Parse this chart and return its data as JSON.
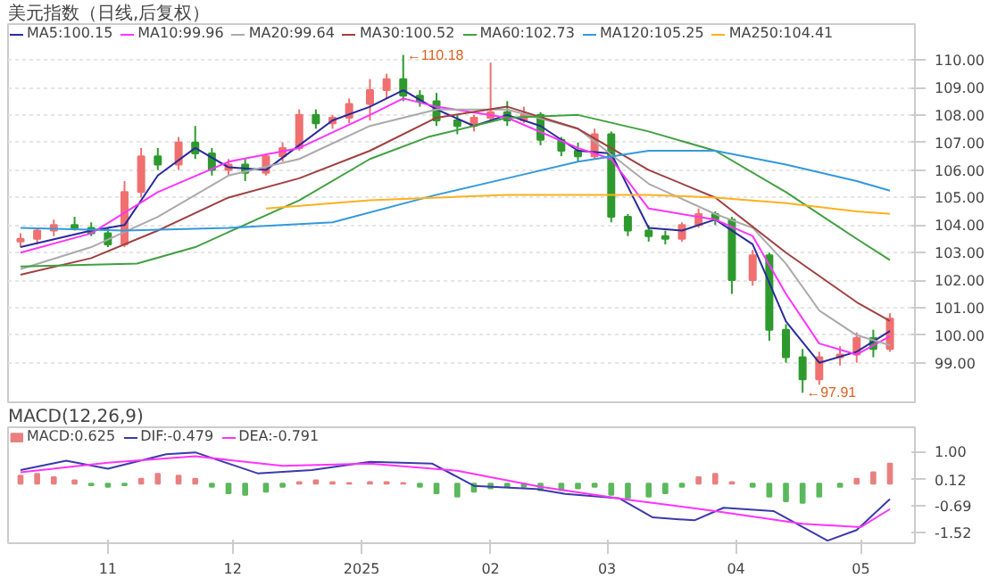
{
  "chart_data": [
    {
      "type": "candlestick",
      "title": "美元指数（日线,后复权）",
      "xlim": [
        "2024-10-08",
        "2025-05-14"
      ],
      "ylim": [
        97.5,
        111.3
      ],
      "tick_labels": "y",
      "grid": "y",
      "legend": "top left",
      "yticks": [
        {
          "value": 99,
          "label": "99.00"
        },
        {
          "value": 100,
          "label": "100.00"
        },
        {
          "value": 101,
          "label": "101.00"
        },
        {
          "value": 102,
          "label": "102.00"
        },
        {
          "value": 103,
          "label": "103.00"
        },
        {
          "value": 104,
          "label": "104.00"
        },
        {
          "value": 105,
          "label": "105.00"
        },
        {
          "value": 106,
          "label": "106.00"
        },
        {
          "value": 107,
          "label": "107.00"
        },
        {
          "value": 108,
          "label": "108.00"
        },
        {
          "value": 109,
          "label": "109.00"
        },
        {
          "value": 110,
          "label": "110.00"
        }
      ],
      "x": [
        "2024-10-11",
        "2024-10-15",
        "2024-10-19",
        "2024-10-24",
        "2024-10-28",
        "2024-11-01",
        "2024-11-05",
        "2024-11-09",
        "2024-11-13",
        "2024-11-18",
        "2024-11-22",
        "2024-11-26",
        "2024-11-30",
        "2024-12-04",
        "2024-12-09",
        "2024-12-13",
        "2024-12-17",
        "2024-12-21",
        "2024-12-25",
        "2024-12-29",
        "2025-01-03",
        "2025-01-07",
        "2025-01-11",
        "2025-01-15",
        "2025-01-19",
        "2025-01-24",
        "2025-01-28",
        "2025-02-01",
        "2025-02-05",
        "2025-02-09",
        "2025-02-13",
        "2025-02-18",
        "2025-02-22",
        "2025-02-26",
        "2025-03-02",
        "2025-03-06",
        "2025-03-11",
        "2025-03-15",
        "2025-03-19",
        "2025-03-23",
        "2025-03-27",
        "2025-03-31",
        "2025-04-05",
        "2025-04-09",
        "2025-04-13",
        "2025-04-17",
        "2025-04-21",
        "2025-04-26",
        "2025-04-30",
        "2025-05-04",
        "2025-05-08"
      ],
      "ohlc": [
        [
          103.4,
          103.7,
          103.2,
          103.5
        ],
        [
          103.5,
          103.9,
          103.3,
          103.8
        ],
        [
          103.8,
          104.2,
          103.6,
          104.0
        ],
        [
          104.0,
          104.3,
          103.8,
          103.9
        ],
        [
          103.9,
          104.1,
          103.6,
          103.7
        ],
        [
          103.7,
          103.9,
          103.2,
          103.3
        ],
        [
          103.3,
          105.6,
          103.2,
          105.2
        ],
        [
          105.2,
          106.8,
          105.0,
          106.5
        ],
        [
          106.5,
          106.8,
          106.0,
          106.2
        ],
        [
          106.2,
          107.2,
          106.0,
          107.0
        ],
        [
          107.0,
          107.6,
          106.4,
          106.6
        ],
        [
          106.6,
          106.8,
          105.8,
          106.0
        ],
        [
          106.0,
          106.4,
          105.8,
          106.2
        ],
        [
          106.2,
          106.4,
          105.6,
          105.9
        ],
        [
          105.9,
          106.6,
          105.8,
          106.5
        ],
        [
          106.5,
          107.0,
          106.3,
          106.8
        ],
        [
          106.8,
          108.2,
          106.7,
          108.0
        ],
        [
          108.0,
          108.2,
          107.5,
          107.7
        ],
        [
          107.7,
          108.0,
          107.5,
          107.9
        ],
        [
          107.9,
          108.6,
          107.7,
          108.4
        ],
        [
          108.4,
          109.3,
          107.8,
          108.9
        ],
        [
          108.9,
          109.5,
          108.6,
          109.3
        ],
        [
          109.3,
          110.18,
          108.5,
          108.7
        ],
        [
          108.7,
          108.9,
          108.3,
          108.5
        ],
        [
          108.5,
          108.8,
          107.6,
          107.8
        ],
        [
          107.8,
          108.0,
          107.3,
          107.6
        ],
        [
          107.6,
          108.0,
          107.4,
          107.9
        ],
        [
          107.9,
          109.9,
          107.8,
          108.1
        ],
        [
          108.1,
          108.5,
          107.6,
          107.8
        ],
        [
          107.8,
          108.3,
          107.7,
          108.0
        ],
        [
          108.0,
          108.1,
          106.9,
          107.1
        ],
        [
          107.1,
          107.2,
          106.5,
          106.7
        ],
        [
          106.7,
          107.0,
          106.3,
          106.5
        ],
        [
          106.5,
          107.5,
          106.4,
          107.3
        ],
        [
          107.3,
          107.4,
          104.1,
          104.3
        ],
        [
          104.3,
          104.4,
          103.6,
          103.8
        ],
        [
          103.8,
          104.0,
          103.4,
          103.6
        ],
        [
          103.6,
          103.8,
          103.3,
          103.5
        ],
        [
          103.5,
          104.1,
          103.4,
          104.0
        ],
        [
          104.0,
          104.6,
          103.9,
          104.4
        ],
        [
          104.4,
          104.5,
          104.0,
          104.2
        ],
        [
          104.2,
          104.3,
          101.5,
          102.0
        ],
        [
          102.0,
          103.1,
          101.8,
          102.9
        ],
        [
          102.9,
          103.0,
          99.8,
          100.2
        ],
        [
          100.2,
          100.4,
          99.0,
          99.2
        ],
        [
          99.2,
          99.5,
          97.91,
          98.4
        ],
        [
          98.4,
          99.4,
          98.2,
          99.2
        ],
        [
          99.2,
          99.6,
          98.9,
          99.3
        ],
        [
          99.3,
          100.1,
          99.0,
          99.9
        ],
        [
          99.9,
          100.2,
          99.2,
          99.5
        ],
        [
          99.5,
          100.8,
          99.4,
          100.6
        ]
      ],
      "colors": [
        "#f07070",
        "#f07070",
        "#f07070",
        "#2e9a2e",
        "#2e9a2e",
        "#2e9a2e",
        "#f07070",
        "#f07070",
        "#2e9a2e",
        "#f07070",
        "#2e9a2e",
        "#2e9a2e",
        "#f07070",
        "#2e9a2e",
        "#f07070",
        "#f07070",
        "#f07070",
        "#2e9a2e",
        "#f07070",
        "#f07070",
        "#f07070",
        "#f07070",
        "#2e9a2e",
        "#2e9a2e",
        "#2e9a2e",
        "#2e9a2e",
        "#f07070",
        "#f07070",
        "#2e9a2e",
        "#f07070",
        "#2e9a2e",
        "#2e9a2e",
        "#2e9a2e",
        "#f07070",
        "#2e9a2e",
        "#2e9a2e",
        "#2e9a2e",
        "#2e9a2e",
        "#f07070",
        "#f07070",
        "#2e9a2e",
        "#2e9a2e",
        "#f07070",
        "#2e9a2e",
        "#2e9a2e",
        "#2e9a2e",
        "#f07070",
        "#f07070",
        "#f07070",
        "#2e9a2e",
        "#f07070"
      ],
      "series": [
        {
          "name": "MA5:100.15",
          "type": "line",
          "color": "#2a2a9a",
          "x": [
            "2024-10-11",
            "2024-10-28",
            "2024-11-05",
            "2024-11-13",
            "2024-11-22",
            "2024-11-30",
            "2024-12-09",
            "2024-12-17",
            "2024-12-25",
            "2025-01-03",
            "2025-01-11",
            "2025-01-19",
            "2025-01-28",
            "2025-02-05",
            "2025-02-13",
            "2025-02-22",
            "2025-03-02",
            "2025-03-11",
            "2025-03-19",
            "2025-03-27",
            "2025-04-05",
            "2025-04-13",
            "2025-04-21",
            "2025-04-30",
            "2025-05-08"
          ],
          "values": [
            103.2,
            103.8,
            104.0,
            105.8,
            106.8,
            106.1,
            106.0,
            106.9,
            107.8,
            108.3,
            108.9,
            108.2,
            107.6,
            108.0,
            107.6,
            106.7,
            106.6,
            103.9,
            103.8,
            104.2,
            103.3,
            100.5,
            99.0,
            99.4,
            100.15
          ]
        },
        {
          "name": "MA10:99.96",
          "type": "line",
          "color": "#ff33ff",
          "x": [
            "2024-10-11",
            "2024-10-28",
            "2024-11-13",
            "2024-11-30",
            "2024-12-17",
            "2025-01-03",
            "2025-01-11",
            "2025-01-19",
            "2025-02-05",
            "2025-02-22",
            "2025-03-02",
            "2025-03-11",
            "2025-03-27",
            "2025-04-05",
            "2025-04-13",
            "2025-04-21",
            "2025-04-30",
            "2025-05-08"
          ],
          "values": [
            103.0,
            103.7,
            105.2,
            106.3,
            106.8,
            108.0,
            108.6,
            108.3,
            107.9,
            106.8,
            106.4,
            104.6,
            104.2,
            103.6,
            101.5,
            99.7,
            99.3,
            99.96
          ]
        },
        {
          "name": "MA20:99.64",
          "type": "line",
          "color": "#aaaaaa",
          "x": [
            "2024-10-11",
            "2024-10-28",
            "2024-11-13",
            "2024-11-30",
            "2024-12-17",
            "2025-01-03",
            "2025-01-19",
            "2025-02-05",
            "2025-02-22",
            "2025-03-11",
            "2025-03-27",
            "2025-04-05",
            "2025-04-13",
            "2025-04-21",
            "2025-04-30",
            "2025-05-08"
          ],
          "values": [
            102.4,
            103.2,
            104.3,
            105.8,
            106.4,
            107.6,
            108.2,
            108.2,
            107.5,
            105.5,
            104.4,
            103.9,
            102.6,
            100.9,
            100.0,
            99.64
          ]
        },
        {
          "name": "MA30:100.52",
          "type": "line",
          "color": "#a04040",
          "x": [
            "2024-10-11",
            "2024-10-28",
            "2024-11-13",
            "2024-11-30",
            "2024-12-17",
            "2025-01-03",
            "2025-01-19",
            "2025-02-05",
            "2025-02-22",
            "2025-03-11",
            "2025-03-27",
            "2025-04-13",
            "2025-04-30",
            "2025-05-08"
          ],
          "values": [
            102.2,
            102.8,
            103.8,
            105.0,
            105.7,
            106.7,
            107.9,
            108.3,
            107.5,
            106.0,
            105.0,
            103.0,
            101.2,
            100.52
          ]
        },
        {
          "name": "MA60:102.73",
          "type": "line",
          "color": "#40a040",
          "x": [
            "2024-10-11",
            "2024-11-08",
            "2024-11-22",
            "2024-12-17",
            "2025-01-03",
            "2025-01-17",
            "2025-02-05",
            "2025-02-22",
            "2025-03-11",
            "2025-03-27",
            "2025-04-13",
            "2025-04-30",
            "2025-05-08"
          ],
          "values": [
            102.5,
            102.6,
            103.2,
            104.9,
            106.4,
            107.2,
            107.9,
            108.0,
            107.4,
            106.7,
            105.2,
            103.5,
            102.73
          ]
        },
        {
          "name": "MA120:105.25",
          "type": "line",
          "color": "#3399dd",
          "x": [
            "2024-10-11",
            "2024-11-05",
            "2024-11-30",
            "2024-12-25",
            "2025-01-19",
            "2025-02-05",
            "2025-02-22",
            "2025-03-11",
            "2025-03-27",
            "2025-04-13",
            "2025-04-30",
            "2025-05-08"
          ],
          "values": [
            103.9,
            103.8,
            103.9,
            104.1,
            105.1,
            105.7,
            106.3,
            106.7,
            106.7,
            106.2,
            105.6,
            105.25
          ]
        },
        {
          "name": "MA250:104.41",
          "type": "line",
          "color": "#ffb020",
          "x": [
            "2024-12-09",
            "2025-01-03",
            "2025-02-05",
            "2025-03-11",
            "2025-03-27",
            "2025-04-13",
            "2025-04-30",
            "2025-05-08"
          ],
          "values": [
            104.6,
            104.9,
            105.1,
            105.1,
            105.0,
            104.8,
            104.5,
            104.41
          ]
        }
      ],
      "annotations": [
        {
          "text": "←110.18",
          "x": "2025-01-11",
          "y": 110.18
        },
        {
          "text": "←97.91",
          "x": "2025-04-17",
          "y": 97.91
        }
      ]
    },
    {
      "type": "bar",
      "title": "MACD(12,26,9)",
      "xlim": [
        "2024-10-08",
        "2025-05-14"
      ],
      "ylim": [
        -1.85,
        1.75
      ],
      "legend": "top left",
      "xticks": [
        {
          "value": "2024-11-01",
          "label": "11"
        },
        {
          "value": "2024-12-01",
          "label": "12"
        },
        {
          "value": "2025-01-01",
          "label": "2025"
        },
        {
          "value": "2025-02-01",
          "label": "02"
        },
        {
          "value": "2025-03-01",
          "label": "03"
        },
        {
          "value": "2025-04-01",
          "label": "04"
        },
        {
          "value": "2025-05-01",
          "label": "05"
        }
      ],
      "yticks": [
        {
          "value": 1.0,
          "label": "1.00"
        },
        {
          "value": 0.12,
          "label": "0.12"
        },
        {
          "value": -0.69,
          "label": "-0.69"
        },
        {
          "value": -1.52,
          "label": "-1.52"
        }
      ],
      "x": [
        "2024-10-11",
        "2024-10-15",
        "2024-10-19",
        "2024-10-24",
        "2024-10-28",
        "2024-11-01",
        "2024-11-05",
        "2024-11-09",
        "2024-11-13",
        "2024-11-18",
        "2024-11-22",
        "2024-11-26",
        "2024-11-30",
        "2024-12-04",
        "2024-12-09",
        "2024-12-13",
        "2024-12-17",
        "2024-12-21",
        "2024-12-25",
        "2024-12-29",
        "2025-01-03",
        "2025-01-07",
        "2025-01-11",
        "2025-01-15",
        "2025-01-19",
        "2025-01-24",
        "2025-01-28",
        "2025-02-01",
        "2025-02-05",
        "2025-02-09",
        "2025-02-13",
        "2025-02-18",
        "2025-02-22",
        "2025-02-26",
        "2025-03-02",
        "2025-03-06",
        "2025-03-11",
        "2025-03-15",
        "2025-03-19",
        "2025-03-23",
        "2025-03-27",
        "2025-03-31",
        "2025-04-05",
        "2025-04-09",
        "2025-04-13",
        "2025-04-17",
        "2025-04-21",
        "2025-04-26",
        "2025-04-30",
        "2025-05-04",
        "2025-05-08"
      ],
      "series": [
        {
          "name": "MACD:0.625",
          "type": "bar",
          "values": [
            0.25,
            0.3,
            0.2,
            0.1,
            -0.05,
            -0.1,
            -0.05,
            0.15,
            0.3,
            0.25,
            0.15,
            -0.1,
            -0.3,
            -0.35,
            -0.25,
            -0.1,
            0.05,
            0.1,
            0.05,
            0.02,
            0.05,
            0.05,
            0.02,
            -0.1,
            -0.3,
            -0.4,
            -0.25,
            -0.15,
            -0.1,
            -0.1,
            -0.2,
            -0.2,
            -0.15,
            -0.1,
            -0.35,
            -0.45,
            -0.4,
            -0.3,
            -0.1,
            0.2,
            0.3,
            0.05,
            -0.1,
            -0.4,
            -0.55,
            -0.6,
            -0.4,
            -0.1,
            0.15,
            0.35,
            0.625
          ],
          "colors": [
            "#e88080",
            "#e88080",
            "#e88080",
            "#e88080",
            "#5cb85c",
            "#5cb85c",
            "#5cb85c",
            "#e88080",
            "#e88080",
            "#e88080",
            "#e88080",
            "#5cb85c",
            "#5cb85c",
            "#5cb85c",
            "#5cb85c",
            "#5cb85c",
            "#e88080",
            "#e88080",
            "#e88080",
            "#e88080",
            "#e88080",
            "#e88080",
            "#e88080",
            "#5cb85c",
            "#5cb85c",
            "#5cb85c",
            "#5cb85c",
            "#5cb85c",
            "#5cb85c",
            "#5cb85c",
            "#5cb85c",
            "#5cb85c",
            "#5cb85c",
            "#5cb85c",
            "#5cb85c",
            "#5cb85c",
            "#5cb85c",
            "#5cb85c",
            "#5cb85c",
            "#e88080",
            "#e88080",
            "#e88080",
            "#5cb85c",
            "#5cb85c",
            "#5cb85c",
            "#5cb85c",
            "#5cb85c",
            "#5cb85c",
            "#e88080",
            "#e88080",
            "#e88080"
          ]
        },
        {
          "name": "DIF:-0.479",
          "type": "line",
          "color": "#3a3aaa",
          "x": [
            "2024-10-11",
            "2024-10-22",
            "2024-11-01",
            "2024-11-15",
            "2024-11-22",
            "2024-12-07",
            "2024-12-20",
            "2025-01-03",
            "2025-01-18",
            "2025-01-28",
            "2025-02-12",
            "2025-02-19",
            "2025-02-27",
            "2025-03-04",
            "2025-03-12",
            "2025-03-22",
            "2025-03-29",
            "2025-04-10",
            "2025-04-23",
            "2025-04-30",
            "2025-05-08"
          ],
          "values": [
            0.42,
            0.71,
            0.46,
            0.91,
            0.97,
            0.32,
            0.42,
            0.68,
            0.62,
            -0.07,
            -0.17,
            -0.32,
            -0.4,
            -0.46,
            -1.05,
            -1.14,
            -0.75,
            -0.85,
            -1.77,
            -1.44,
            -0.479
          ]
        },
        {
          "name": "DEA:-0.791",
          "type": "line",
          "color": "#ff33ff",
          "x": [
            "2024-10-11",
            "2024-11-01",
            "2024-11-22",
            "2024-12-13",
            "2025-01-03",
            "2025-01-24",
            "2025-02-13",
            "2025-03-06",
            "2025-03-27",
            "2025-04-17",
            "2025-05-01",
            "2025-05-08"
          ],
          "values": [
            0.35,
            0.65,
            0.85,
            0.55,
            0.62,
            0.4,
            -0.1,
            -0.5,
            -0.85,
            -1.25,
            -1.35,
            -0.791
          ]
        }
      ]
    }
  ]
}
